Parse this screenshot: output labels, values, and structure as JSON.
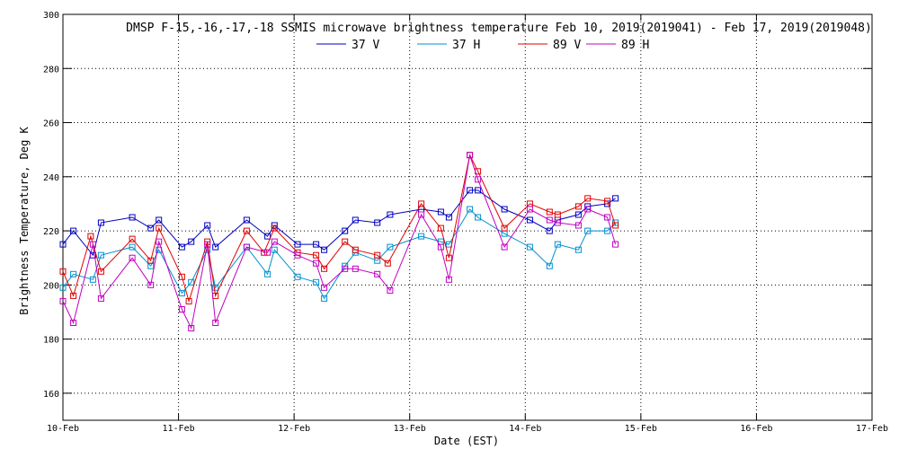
{
  "chart_data": {
    "type": "line",
    "title": "DMSP F-15,-16,-17,-18 SSMIS microwave brightness temperature Feb 10, 2019(2019041) - Feb 17, 2019(2019048)",
    "xlabel": "Date (EST)",
    "ylabel": "Brightness Temperature, Deg K",
    "xlim": [
      0,
      7
    ],
    "ylim": [
      150,
      300
    ],
    "x_tick_labels": [
      "10-Feb",
      "11-Feb",
      "12-Feb",
      "13-Feb",
      "14-Feb",
      "15-Feb",
      "16-Feb",
      "17-Feb"
    ],
    "y_ticks": [
      160,
      180,
      200,
      220,
      240,
      260,
      280,
      300
    ],
    "grid": true,
    "legend_position": "top",
    "series": [
      {
        "name": "37 V",
        "color": "#0000c0",
        "x": [
          0.0,
          0.09,
          0.26,
          0.33,
          0.6,
          0.76,
          0.83,
          1.03,
          1.11,
          1.25,
          1.32,
          1.59,
          1.77,
          1.83,
          2.03,
          2.19,
          2.26,
          2.44,
          2.53,
          2.72,
          2.83,
          3.1,
          3.27,
          3.34,
          3.52,
          3.59,
          3.82,
          4.04,
          4.21,
          4.28,
          4.46,
          4.54,
          4.71,
          4.78
        ],
        "y": [
          215,
          220,
          211,
          223,
          225,
          221,
          224,
          214,
          216,
          222,
          214,
          224,
          218,
          222,
          215,
          215,
          213,
          220,
          224,
          223,
          226,
          228,
          227,
          225,
          235,
          235,
          228,
          224,
          220,
          224,
          226,
          229,
          230,
          232
        ]
      },
      {
        "name": "37 H",
        "color": "#0090d0",
        "x": [
          0.0,
          0.09,
          0.26,
          0.33,
          0.6,
          0.76,
          0.83,
          1.03,
          1.11,
          1.25,
          1.32,
          1.59,
          1.77,
          1.83,
          2.03,
          2.19,
          2.26,
          2.44,
          2.53,
          2.72,
          2.83,
          3.1,
          3.27,
          3.34,
          3.52,
          3.59,
          3.82,
          4.04,
          4.21,
          4.28,
          4.46,
          4.54,
          4.71,
          4.78
        ],
        "y": [
          199,
          204,
          202,
          211,
          214,
          207,
          213,
          197,
          201,
          213,
          199,
          214,
          204,
          213,
          203,
          201,
          195,
          207,
          212,
          209,
          214,
          218,
          216,
          215,
          228,
          225,
          219,
          214,
          207,
          215,
          213,
          220,
          220,
          223
        ]
      },
      {
        "name": "89 V",
        "color": "#e00000",
        "x": [
          0.0,
          0.09,
          0.24,
          0.33,
          0.6,
          0.76,
          0.83,
          1.03,
          1.09,
          1.25,
          1.32,
          1.59,
          1.74,
          1.83,
          2.03,
          2.19,
          2.26,
          2.44,
          2.53,
          2.72,
          2.81,
          3.1,
          3.27,
          3.34,
          3.52,
          3.59,
          3.82,
          4.04,
          4.21,
          4.28,
          4.46,
          4.54,
          4.71,
          4.78
        ],
        "y": [
          205,
          196,
          218,
          205,
          217,
          209,
          221,
          203,
          194,
          216,
          196,
          220,
          212,
          221,
          212,
          211,
          206,
          216,
          213,
          211,
          208,
          230,
          221,
          210,
          248,
          242,
          221,
          230,
          227,
          226,
          229,
          232,
          231,
          222
        ]
      },
      {
        "name": "89 H",
        "color": "#c000c0",
        "x": [
          0.0,
          0.09,
          0.26,
          0.33,
          0.6,
          0.76,
          0.83,
          1.03,
          1.11,
          1.25,
          1.32,
          1.59,
          1.77,
          1.83,
          2.03,
          2.19,
          2.26,
          2.44,
          2.53,
          2.72,
          2.83,
          3.1,
          3.27,
          3.34,
          3.52,
          3.59,
          3.82,
          4.04,
          4.21,
          4.28,
          4.46,
          4.54,
          4.71,
          4.78
        ],
        "y": [
          194,
          186,
          215,
          195,
          210,
          200,
          216,
          191,
          184,
          215,
          186,
          214,
          212,
          216,
          211,
          208,
          199,
          206,
          206,
          204,
          198,
          226,
          214,
          202,
          248,
          239,
          214,
          228,
          224,
          223,
          222,
          228,
          225,
          215
        ]
      }
    ]
  }
}
